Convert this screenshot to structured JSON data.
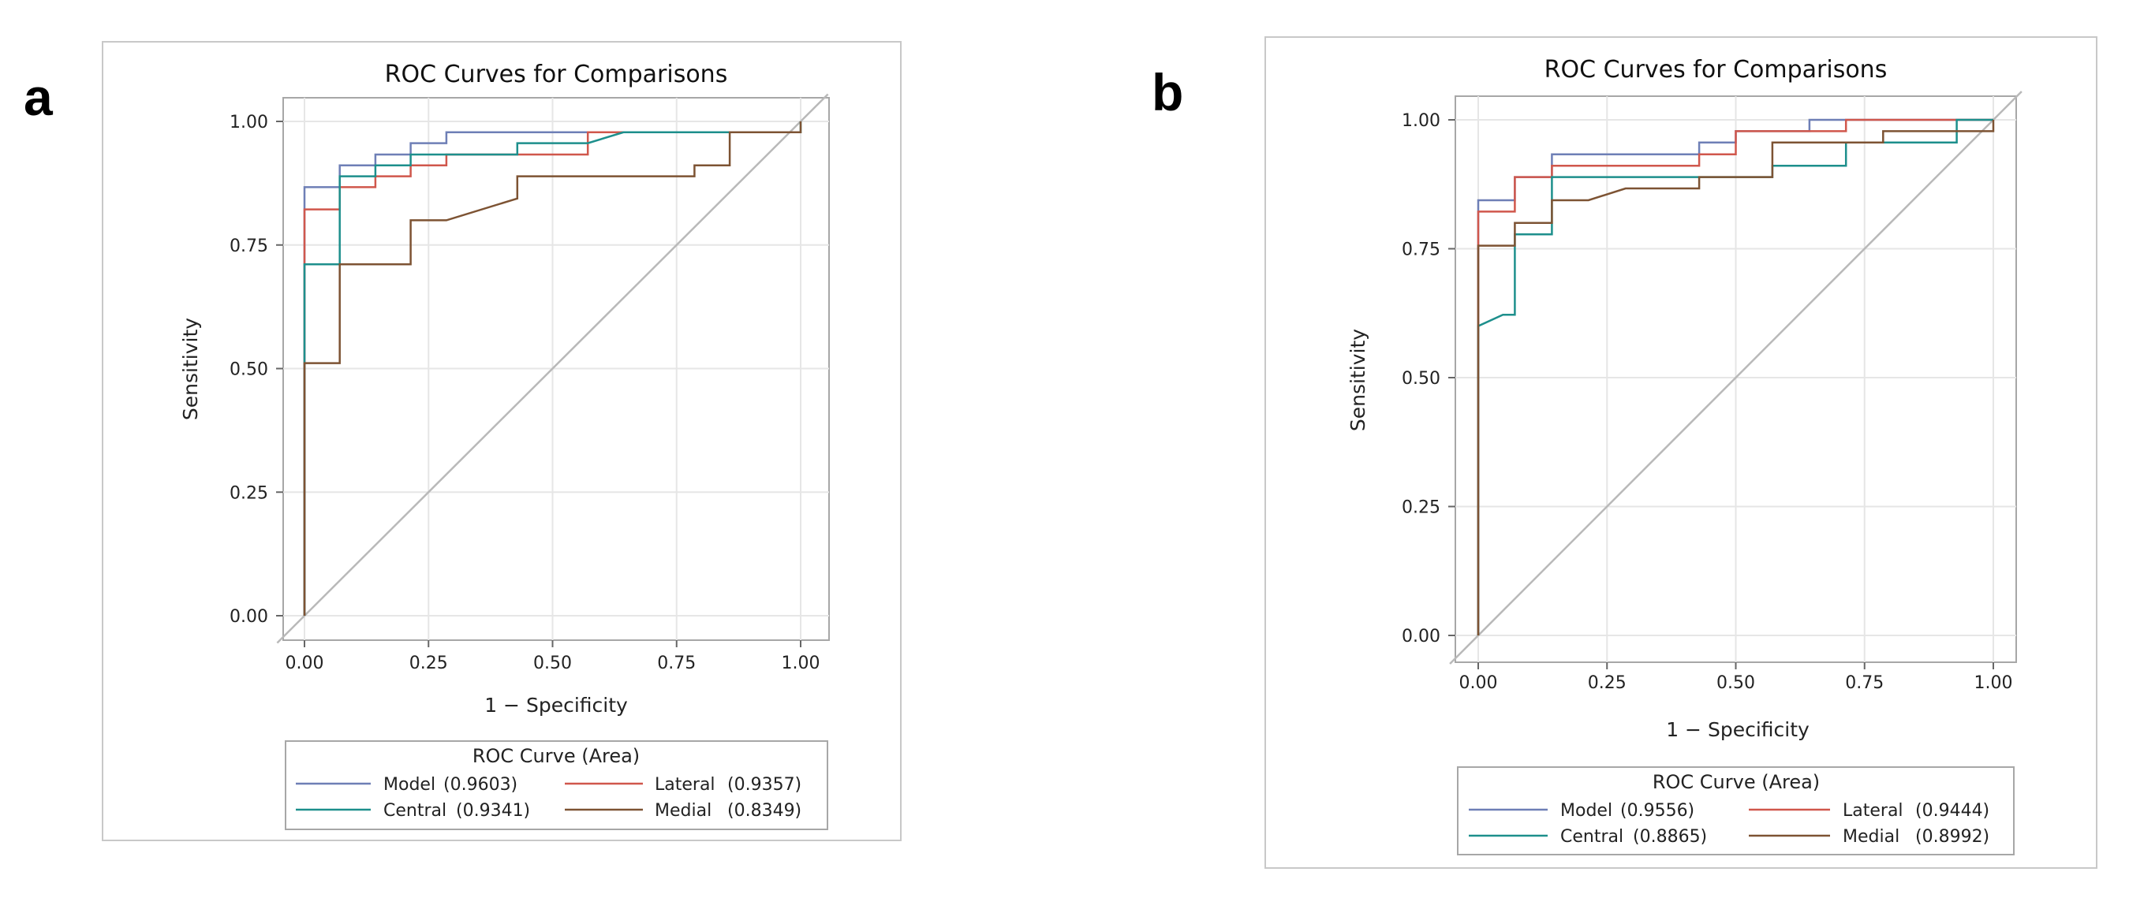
{
  "colors": {
    "model": "#6e7fb6",
    "lateral": "#d0574c",
    "central": "#1d8f8c",
    "medial": "#7d5333",
    "reference": "#b9b9b9"
  },
  "chart_data": [
    {
      "panel_label": "a",
      "type": "line",
      "title": "ROC Curves for Comparisons",
      "xlabel": "1 − Specificity",
      "ylabel": "Sensitivity",
      "xlim": [
        0,
        1
      ],
      "ylim": [
        0,
        1
      ],
      "xticks": [
        "0.00",
        "0.25",
        "0.50",
        "0.75",
        "1.00"
      ],
      "yticks": [
        "0.00",
        "0.25",
        "0.50",
        "0.75",
        "1.00"
      ],
      "grid": true,
      "legend_title": "ROC Curve (Area)",
      "series": [
        {
          "name": "Model",
          "area": "(0.9603)",
          "color_key": "model",
          "x": [
            0,
            0,
            0.071,
            0.071,
            0.143,
            0.143,
            0.214,
            0.214,
            0.286,
            0.286,
            1
          ],
          "y": [
            0,
            0.867,
            0.867,
            0.911,
            0.911,
            0.933,
            0.933,
            0.956,
            0.956,
            0.978,
            0.978
          ]
        },
        {
          "name": "Lateral",
          "area": "(0.9357)",
          "color_key": "lateral",
          "x": [
            0,
            0,
            0.071,
            0.071,
            0.143,
            0.143,
            0.214,
            0.214,
            0.286,
            0.286,
            0.571,
            0.571,
            1
          ],
          "y": [
            0,
            0.822,
            0.822,
            0.867,
            0.867,
            0.889,
            0.889,
            0.911,
            0.911,
            0.933,
            0.933,
            0.978,
            0.978
          ]
        },
        {
          "name": "Central",
          "area": "(0.9341)",
          "color_key": "central",
          "x": [
            0,
            0,
            0.071,
            0.071,
            0.143,
            0.143,
            0.214,
            0.214,
            0.286,
            0.286,
            0.429,
            0.429,
            0.571,
            0.643,
            0.643,
            1,
            1
          ],
          "y": [
            0,
            0.711,
            0.711,
            0.889,
            0.889,
            0.911,
            0.911,
            0.933,
            0.933,
            0.933,
            0.933,
            0.956,
            0.956,
            0.978,
            0.978,
            0.978,
            1.0
          ]
        },
        {
          "name": "Medial",
          "area": "(0.8349)",
          "color_key": "medial",
          "x": [
            0,
            0,
            0.071,
            0.071,
            0.214,
            0.214,
            0.286,
            0.429,
            0.429,
            0.786,
            0.786,
            0.857,
            0.857,
            1,
            1
          ],
          "y": [
            0,
            0.511,
            0.511,
            0.711,
            0.711,
            0.8,
            0.8,
            0.844,
            0.889,
            0.889,
            0.911,
            0.911,
            0.978,
            0.978,
            1.0
          ]
        }
      ]
    },
    {
      "panel_label": "b",
      "type": "line",
      "title": "ROC Curves for Comparisons",
      "xlabel": "1 − Specificity",
      "ylabel": "Sensitivity",
      "xlim": [
        0,
        1
      ],
      "ylim": [
        0,
        1
      ],
      "xticks": [
        "0.00",
        "0.25",
        "0.50",
        "0.75",
        "1.00"
      ],
      "yticks": [
        "0.00",
        "0.25",
        "0.50",
        "0.75",
        "1.00"
      ],
      "grid": true,
      "legend_title": "ROC Curve (Area)",
      "series": [
        {
          "name": "Model",
          "area": "(0.9556)",
          "color_key": "model",
          "x": [
            0,
            0,
            0.071,
            0.071,
            0.143,
            0.143,
            0.429,
            0.429,
            0.5,
            0.5,
            0.643,
            0.643,
            1
          ],
          "y": [
            0,
            0.844,
            0.844,
            0.889,
            0.889,
            0.933,
            0.933,
            0.956,
            0.956,
            0.978,
            0.978,
            1.0,
            1.0
          ]
        },
        {
          "name": "Lateral",
          "area": "(0.9444)",
          "color_key": "lateral",
          "x": [
            0,
            0,
            0.071,
            0.071,
            0.143,
            0.143,
            0.429,
            0.429,
            0.5,
            0.5,
            0.714,
            0.714,
            1
          ],
          "y": [
            0,
            0.822,
            0.822,
            0.889,
            0.889,
            0.911,
            0.911,
            0.933,
            0.933,
            0.978,
            0.978,
            1.0,
            1.0
          ]
        },
        {
          "name": "Central",
          "area": "(0.8865)",
          "color_key": "central",
          "x": [
            0,
            0,
            0.048,
            0.071,
            0.071,
            0.143,
            0.143,
            0.5,
            0.5,
            0.571,
            0.571,
            0.714,
            0.714,
            0.929,
            0.929,
            1
          ],
          "y": [
            0,
            0.6,
            0.622,
            0.622,
            0.778,
            0.778,
            0.889,
            0.889,
            0.889,
            0.889,
            0.911,
            0.911,
            0.956,
            0.956,
            1.0,
            1.0
          ]
        },
        {
          "name": "Medial",
          "area": "(0.8992)",
          "color_key": "medial",
          "x": [
            0,
            0,
            0.071,
            0.071,
            0.143,
            0.143,
            0.214,
            0.286,
            0.429,
            0.429,
            0.571,
            0.571,
            0.786,
            0.786,
            1,
            1
          ],
          "y": [
            0,
            0.756,
            0.756,
            0.8,
            0.8,
            0.844,
            0.844,
            0.867,
            0.867,
            0.889,
            0.889,
            0.956,
            0.956,
            0.978,
            0.978,
            1.0
          ]
        }
      ]
    }
  ]
}
